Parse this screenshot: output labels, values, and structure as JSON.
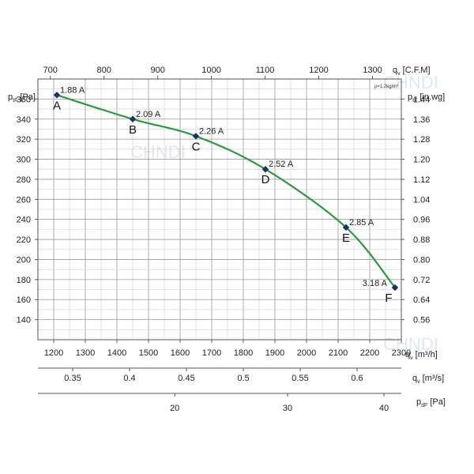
{
  "chart_data": {
    "type": "line",
    "xlabel": "q",
    "xlabel_sub": "v",
    "xlabel_unit": "[m³/h]",
    "ylabel": "p",
    "ylabel_sub": "tF",
    "ylabel_unit": "[Pa]",
    "xlim": [
      1150,
      2300
    ],
    "ylim": [
      120,
      380
    ],
    "x_ticks": [
      1200,
      1300,
      1400,
      1500,
      1600,
      1700,
      1800,
      1900,
      2000,
      2100,
      2200,
      2300
    ],
    "y_ticks": [
      140,
      160,
      180,
      200,
      220,
      240,
      260,
      280,
      300,
      320,
      340,
      360
    ],
    "grid": true,
    "curve_color": "#2a9a3c",
    "marker_color": "#1c2f6e",
    "series": [
      {
        "x": [
          1210,
          1450,
          1650,
          1870,
          2125,
          2280
        ],
        "y": [
          364,
          340,
          323,
          290,
          232,
          172
        ]
      }
    ],
    "points": [
      {
        "letter": "A",
        "current": "1.88 A",
        "x": 1210,
        "y": 364
      },
      {
        "letter": "B",
        "current": "2.09 A",
        "x": 1450,
        "y": 340
      },
      {
        "letter": "C",
        "current": "2.26 A",
        "x": 1650,
        "y": 323
      },
      {
        "letter": "D",
        "current": "2.52 A",
        "x": 1870,
        "y": 290
      },
      {
        "letter": "E",
        "current": "2.85 A",
        "x": 2125,
        "y": 232
      },
      {
        "letter": "F",
        "current": "3.18 A",
        "x": 2280,
        "y": 172
      }
    ],
    "top_axis": {
      "label": "q",
      "label_sub": "v",
      "unit": "[C.F.M]",
      "ticks": [
        700,
        800,
        900,
        1000,
        1100,
        1200,
        1300
      ]
    },
    "right_axis": {
      "label": "p",
      "label_sub": "tF",
      "unit": "[in.wg]",
      "ticks": [
        "1.44",
        "1.36",
        "1.28",
        "1.20",
        "1.12",
        "1.04",
        "0.96",
        "0.88",
        "0.80",
        "0.72",
        "0.64",
        "0.56"
      ],
      "density_note": "ρ=1.2kg/m³"
    },
    "bottom_axis_2": {
      "label": "q",
      "label_sub": "v",
      "unit": "[m³/s]",
      "ticks": [
        "0.35",
        "0.4",
        "0.45",
        "0.5",
        "0.55",
        "0.6"
      ]
    },
    "bottom_axis_3": {
      "label": "p",
      "label_sub": "dF",
      "unit": "[Pa]",
      "ticks": [
        "20",
        "30",
        "40"
      ]
    },
    "watermark": "CHNDI"
  }
}
